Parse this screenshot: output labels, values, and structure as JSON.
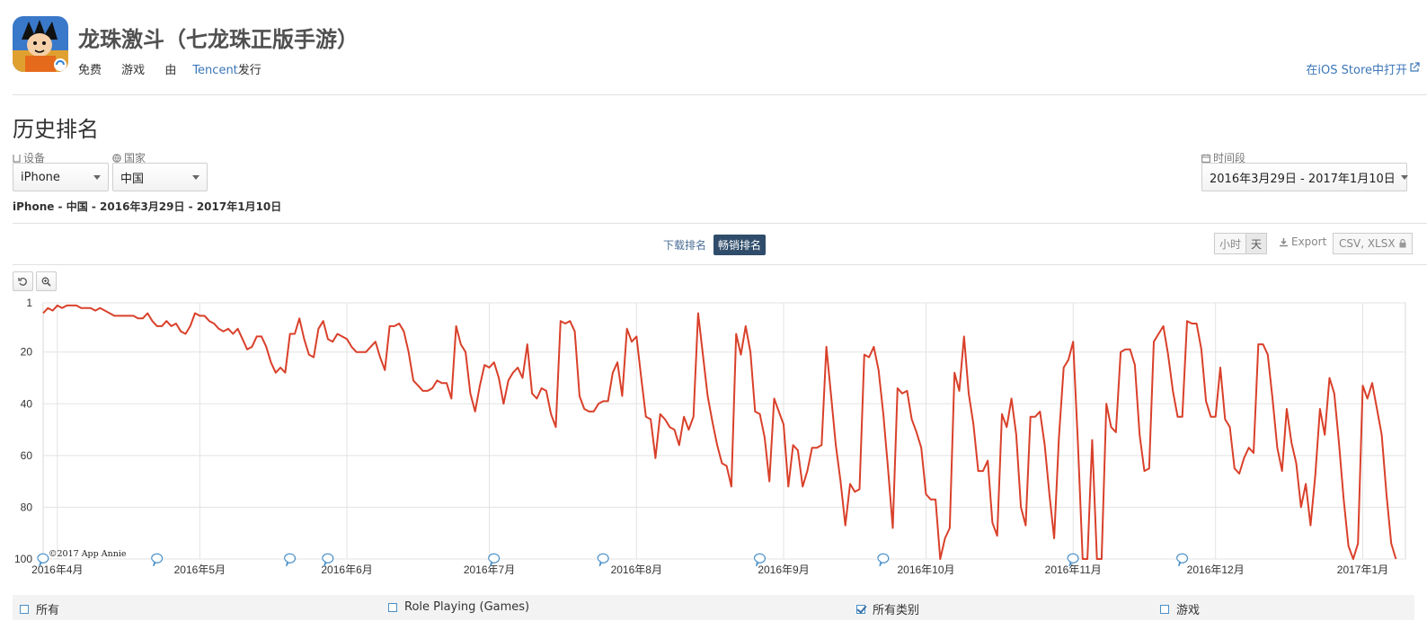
{
  "app": {
    "title": "龙珠激斗（七龙珠正版手游）",
    "price": "免费",
    "category": "游戏",
    "publisher_prefix": "由",
    "publisher": "Tencent",
    "publisher_suffix": "发行",
    "store_link": "在iOS Store中打开"
  },
  "section": {
    "title": "历史排名"
  },
  "filters": {
    "device_label": "设备",
    "device_value": "iPhone",
    "country_label": "国家",
    "country_value": "中国",
    "period_label": "时间段",
    "period_value": "2016年3月29日 - 2017年1月10日"
  },
  "summary": "iPhone - 中国 - 2016年3月29日 - 2017年1月10日",
  "rank_tabs": [
    {
      "label": "下载排名",
      "active": false
    },
    {
      "label": "畅销排名",
      "active": true
    }
  ],
  "toolbar": {
    "hour_label": "小时",
    "day_label": "天",
    "export_label": "Export",
    "csv_label": "CSV, XLSX"
  },
  "colors": {
    "line": "#d9402a",
    "link": "#3b76b8",
    "active_tab": "#2f4d6b"
  },
  "icons": {
    "reset": "undo-icon",
    "zoom": "zoom-icon",
    "device": "device-icon",
    "country": "globe-icon",
    "period": "calendar-icon",
    "export": "download-icon",
    "lock": "lock-icon",
    "external": "external-link-icon"
  },
  "chart_data": {
    "type": "line",
    "title": "",
    "xlabel": "",
    "ylabel": "",
    "reversed_y": true,
    "ylim": [
      1,
      100
    ],
    "yticks": [
      1,
      20,
      40,
      60,
      80,
      100
    ],
    "x_range": [
      "2016-03-29",
      "2017-01-10"
    ],
    "x_ticks": [
      {
        "date": "2016-04-01",
        "label": "2016年4月"
      },
      {
        "date": "2016-05-01",
        "label": "2016年5月"
      },
      {
        "date": "2016-06-01",
        "label": "2016年6月"
      },
      {
        "date": "2016-07-01",
        "label": "2016年7月"
      },
      {
        "date": "2016-08-01",
        "label": "2016年8月"
      },
      {
        "date": "2016-09-01",
        "label": "2016年9月"
      },
      {
        "date": "2016-10-01",
        "label": "2016年10月"
      },
      {
        "date": "2016-11-01",
        "label": "2016年11月"
      },
      {
        "date": "2016-12-01",
        "label": "2016年12月"
      },
      {
        "date": "2017-01-01",
        "label": "2017年1月"
      }
    ],
    "watermark": "©2017 App Annie",
    "annotation_dates": [
      "2016-03-29",
      "2016-04-22",
      "2016-05-20",
      "2016-05-28",
      "2016-07-02",
      "2016-07-25",
      "2016-08-27",
      "2016-09-22",
      "2016-11-01",
      "2016-11-24"
    ],
    "series": [
      {
        "start_date": "2016-03-29",
        "step_days": 1,
        "values": [
          5,
          3,
          4,
          2,
          3,
          2,
          2,
          2,
          3,
          3,
          3,
          4,
          3,
          4,
          5,
          6,
          6,
          6,
          6,
          6,
          7,
          7,
          5,
          8,
          10,
          10,
          8,
          10,
          9,
          12,
          13,
          10,
          5,
          6,
          6,
          8,
          9,
          11,
          12,
          11,
          13,
          11,
          15,
          19,
          18,
          14,
          14,
          18,
          24,
          28,
          26,
          28,
          13,
          13,
          7,
          15,
          21,
          22,
          11,
          8,
          15,
          16,
          13,
          14,
          15,
          18,
          20,
          20,
          20,
          18,
          16,
          22,
          27,
          10,
          10,
          9,
          12,
          20,
          31,
          33,
          35,
          35,
          34,
          31,
          32,
          32,
          38,
          10,
          17,
          20,
          36,
          43,
          33,
          25,
          26,
          24,
          30,
          40,
          31,
          28,
          26,
          30,
          17,
          36,
          38,
          34,
          35,
          44,
          49,
          8,
          9,
          8,
          12,
          37,
          42,
          43,
          43,
          40,
          39,
          39,
          28,
          24,
          37,
          11,
          16,
          14,
          30,
          45,
          46,
          61,
          44,
          46,
          49,
          50,
          56,
          45,
          50,
          45,
          5,
          21,
          37,
          47,
          56,
          63,
          64,
          72,
          13,
          21,
          10,
          20,
          43,
          44,
          53,
          70,
          38,
          43,
          48,
          72,
          56,
          58,
          72,
          66,
          57,
          57,
          56,
          18,
          37,
          56,
          70,
          87,
          71,
          74,
          73,
          21,
          22,
          18,
          27,
          44,
          65,
          88,
          34,
          36,
          35,
          46,
          51,
          57,
          75,
          77,
          77,
          100,
          92,
          88,
          28,
          35,
          14,
          36,
          48,
          66,
          66,
          62,
          86,
          91,
          44,
          49,
          38,
          52,
          80,
          87,
          45,
          45,
          43,
          56,
          75,
          92,
          53,
          26,
          23,
          16,
          55,
          100,
          100,
          54,
          100,
          100,
          40,
          49,
          51,
          20,
          19,
          19,
          25,
          52,
          66,
          65,
          16,
          13,
          10,
          21,
          35,
          45,
          45,
          8,
          9,
          9,
          19,
          39,
          45,
          45,
          26,
          46,
          49,
          65,
          67,
          61,
          57,
          59,
          17,
          17,
          21,
          38,
          57,
          66,
          42,
          55,
          63,
          80,
          71,
          87,
          68,
          42,
          52,
          30,
          36,
          55,
          77,
          95,
          100,
          94,
          33,
          38,
          32,
          42,
          52,
          75,
          94,
          100
        ]
      }
    ]
  },
  "legend": [
    {
      "label": "所有",
      "checked": false
    },
    {
      "label": "Role Playing (Games)",
      "checked": false
    },
    {
      "label": "所有类别",
      "checked": true
    },
    {
      "label": "游戏",
      "checked": false
    }
  ]
}
